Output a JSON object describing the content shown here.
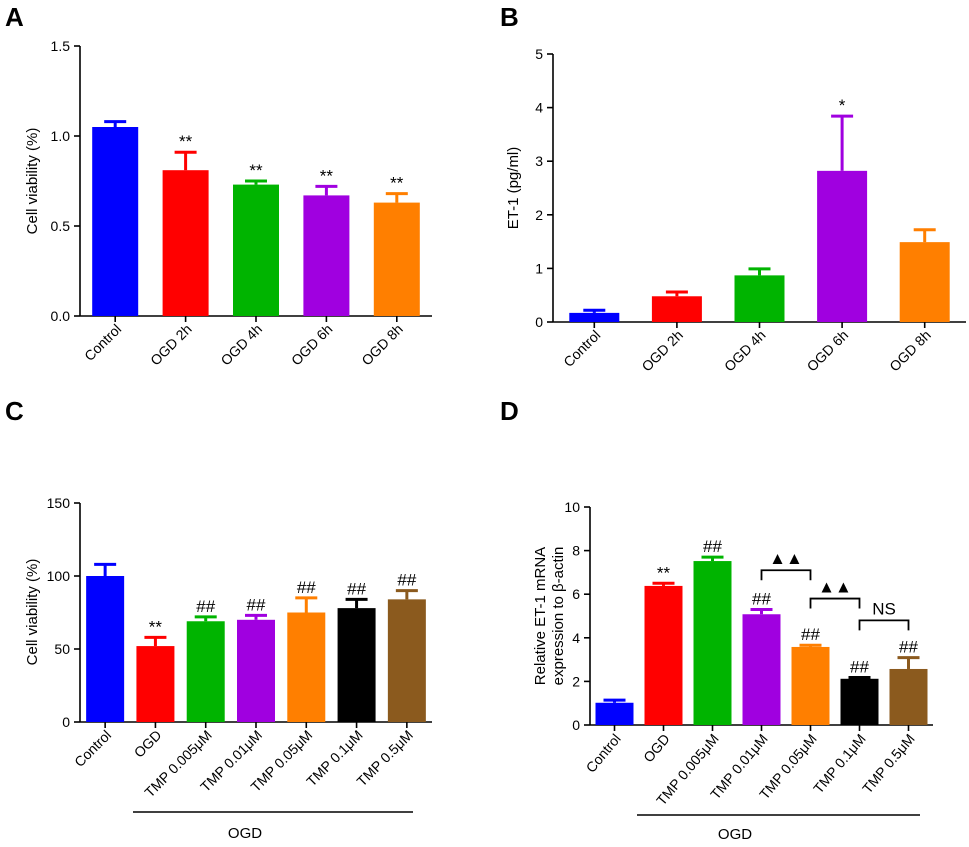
{
  "chart_data": [
    {
      "panel": "A",
      "type": "bar",
      "ylabel": "Cell viability (%)",
      "ylim": [
        0,
        1.5
      ],
      "yticks": [
        "0.0",
        "0.5",
        "1.0",
        "1.5"
      ],
      "categories": [
        "Control",
        "OGD 2h",
        "OGD 4h",
        "OGD 6h",
        "OGD 8h"
      ],
      "values": [
        1.05,
        0.81,
        0.73,
        0.67,
        0.63
      ],
      "errors": [
        0.03,
        0.1,
        0.02,
        0.05,
        0.05
      ],
      "colors": [
        "#0000FF",
        "#FF0000",
        "#00B400",
        "#A000E0",
        "#FF7F00"
      ],
      "significance": [
        "",
        "**",
        "**",
        "**",
        "**"
      ]
    },
    {
      "panel": "B",
      "type": "bar",
      "ylabel": "ET-1 (pg/ml)",
      "ylim": [
        0,
        5
      ],
      "yticks": [
        "0",
        "1",
        "2",
        "3",
        "4",
        "5"
      ],
      "categories": [
        "Control",
        "OGD 2h",
        "OGD 4h",
        "OGD 6h",
        "OGD 8h"
      ],
      "values": [
        0.17,
        0.48,
        0.87,
        2.82,
        1.49
      ],
      "errors": [
        0.05,
        0.08,
        0.12,
        1.02,
        0.23
      ],
      "colors": [
        "#0000FF",
        "#FF0000",
        "#00B400",
        "#A000E0",
        "#FF7F00"
      ],
      "significance": [
        "",
        "",
        "",
        "*",
        ""
      ]
    },
    {
      "panel": "C",
      "type": "bar",
      "ylabel": "Cell viability (%)",
      "ylim": [
        0,
        150
      ],
      "yticks": [
        "0",
        "50",
        "100",
        "150"
      ],
      "categories": [
        "Control",
        "OGD",
        "TMP 0.005μM",
        "TMP 0.01μM",
        "TMP 0.05μM",
        "TMP 0.1μM",
        "TMP 0.5μM"
      ],
      "values": [
        100,
        52,
        69,
        70,
        75,
        78,
        84
      ],
      "errors": [
        8,
        6,
        3,
        3,
        10,
        6,
        6
      ],
      "colors": [
        "#0000FF",
        "#FF0000",
        "#00B400",
        "#A000E0",
        "#FF7F00",
        "#000000",
        "#8B5A1E"
      ],
      "significance": [
        "",
        "**",
        "##",
        "##",
        "##",
        "##",
        "##"
      ],
      "group_label": "OGD"
    },
    {
      "panel": "D",
      "type": "bar",
      "ylabel": [
        "Relative ET-1 mRNA",
        "expression to β-actin"
      ],
      "ylim": [
        0,
        10
      ],
      "yticks": [
        "0",
        "2",
        "4",
        "6",
        "8",
        "10"
      ],
      "categories": [
        "Control",
        "OGD",
        "TMP 0.005μM",
        "TMP 0.01μM",
        "TMP 0.05μM",
        "TMP 0.1μM",
        "TMP 0.5μM"
      ],
      "values": [
        1.02,
        6.38,
        7.52,
        5.08,
        3.58,
        2.12,
        2.57
      ],
      "errors": [
        0.12,
        0.12,
        0.18,
        0.22,
        0.08,
        0.06,
        0.52
      ],
      "colors": [
        "#0000FF",
        "#FF0000",
        "#00B400",
        "#A000E0",
        "#FF7F00",
        "#000000",
        "#8B5A1E"
      ],
      "significance": [
        "",
        "**",
        "##",
        "##",
        "##",
        "##",
        "##"
      ],
      "brackets": [
        {
          "from": 3,
          "to": 4,
          "label": "▲▲",
          "level": 7.1
        },
        {
          "from": 4,
          "to": 5,
          "label": "▲▲",
          "level": 5.8
        },
        {
          "from": 5,
          "to": 6,
          "label": "NS",
          "level": 4.8
        }
      ],
      "group_label": "OGD"
    }
  ]
}
